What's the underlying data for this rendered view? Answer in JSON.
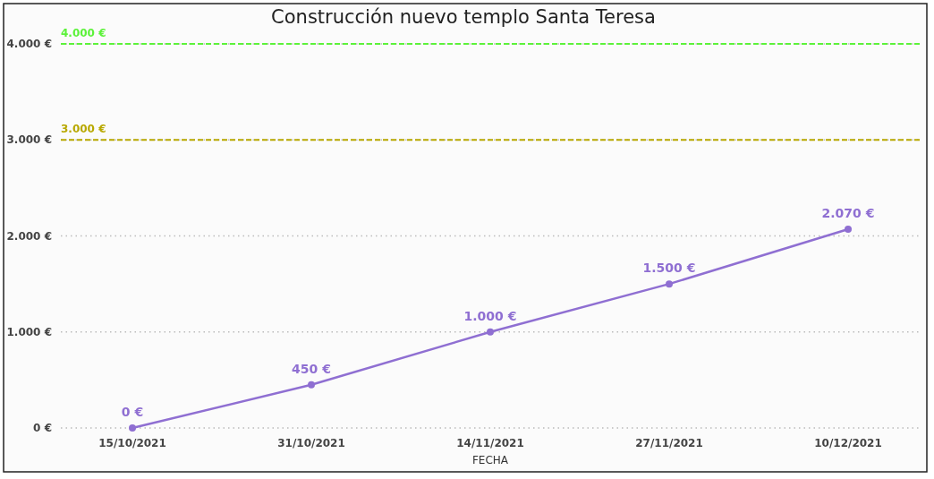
{
  "chart_data": {
    "type": "line",
    "title": "Construcción nuevo templo Santa Teresa",
    "xlabel": "FECHA",
    "categories": [
      "15/10/2021",
      "31/10/2021",
      "14/11/2021",
      "27/11/2021",
      "10/12/2021"
    ],
    "series": [
      {
        "color": "#8f6fd2",
        "values": [
          0,
          450,
          1000,
          1500,
          2070
        ],
        "value_labels": [
          "0 €",
          "450 €",
          "1.000 €",
          "1.500 €",
          "2.070 €"
        ]
      }
    ],
    "ylim": [
      0,
      4000
    ],
    "yticks": [
      {
        "value": 0,
        "label": "0 €"
      },
      {
        "value": 1000,
        "label": "1.000 €"
      },
      {
        "value": 2000,
        "label": "2.000 €"
      },
      {
        "value": 3000,
        "label": "3.000 €"
      },
      {
        "value": 4000,
        "label": "4.000 €"
      }
    ],
    "grid": "y",
    "marker": "circle",
    "line_style": "solid",
    "ref_lines": [
      {
        "axis": "y",
        "value": 4000,
        "label": "4.000 €",
        "color": "#5cf23a",
        "line_style": "dashed"
      },
      {
        "axis": "y",
        "value": 3000,
        "label": "3.000 €",
        "color": "#b8a800",
        "line_style": "dashed"
      }
    ]
  }
}
